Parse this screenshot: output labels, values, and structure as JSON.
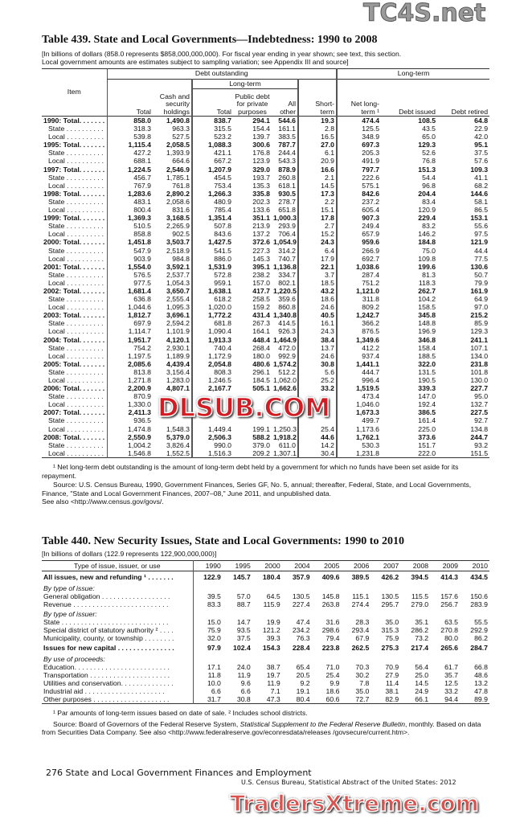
{
  "watermarks": {
    "top": "TC4S.net",
    "middle": "DLSUB.COM",
    "bottom": "TradersXtreme.com"
  },
  "t439": {
    "title": "Table 439. State and Local Governments—Indebtedness: 1990 to 2008",
    "subtitle1": "[In billions of dollars (858.0 represents $858,000,000,000). For fiscal year ending in year shown; see text, this section.",
    "subtitle2": "Local government amounts are estimates subject to sampling variation; see Appendix III and source]",
    "headers": {
      "item": "Item",
      "debt_outstanding": "Debt outstanding",
      "long_term_group": "Long-term",
      "long_term_sub": "Long-term",
      "total": "Total",
      "cash": "Cash and security holdings",
      "lt_total": "Total",
      "public": "Public debt for private purposes",
      "all_other": "All other",
      "short": "Short- term",
      "net": "Net long- term ¹",
      "issued": "Debt issued",
      "retired": "Debt retired"
    },
    "rows": [
      [
        "1990: Total. . . . . . .",
        1,
        "858.0",
        "1,490.8",
        "838.7",
        "294.1",
        "544.6",
        "19.3",
        "474.4",
        "108.5",
        "64.8"
      ],
      [
        "State . . . . . . . . . .",
        0,
        "318.3",
        "963.3",
        "315.5",
        "154.4",
        "161.1",
        "2.8",
        "125.5",
        "43.5",
        "22.9"
      ],
      [
        "Local . . . . . . . . . .",
        0,
        "539.8",
        "527.5",
        "523.2",
        "139.7",
        "383.5",
        "16.5",
        "348.9",
        "65.0",
        "42.0"
      ],
      [
        "1995: Total. . . . . . .",
        1,
        "1,115.4",
        "2,058.5",
        "1,088.3",
        "300.6",
        "787.7",
        "27.0",
        "697.3",
        "129.3",
        "95.1"
      ],
      [
        "State . . . . . . . . . .",
        0,
        "427.2",
        "1,393.9",
        "421.1",
        "176.8",
        "244.4",
        "6.1",
        "205.3",
        "52.6",
        "37.5"
      ],
      [
        "Local . . . . . . . . . .",
        0,
        "688.1",
        "664.6",
        "667.2",
        "123.9",
        "543.3",
        "20.9",
        "491.9",
        "76.8",
        "57.6"
      ],
      [
        "1997: Total. . . . . . .",
        1,
        "1,224.5",
        "2,546.9",
        "1,207.9",
        "329.0",
        "878.9",
        "16.6",
        "797.7",
        "151.3",
        "109.3"
      ],
      [
        "State . . . . . . . . . .",
        0,
        "456.7",
        "1,785.1",
        "454.5",
        "193.7",
        "260.8",
        "2.1",
        "222.6",
        "54.4",
        "41.1"
      ],
      [
        "Local . . . . . . . . . .",
        0,
        "767.9",
        "761.8",
        "753.4",
        "135.3",
        "618.1",
        "14.5",
        "575.1",
        "96.8",
        "68.2"
      ],
      [
        "1998: Total. . . . . . .",
        1,
        "1,283.6",
        "2,890.2",
        "1,266.3",
        "335.8",
        "930.5",
        "17.3",
        "842.6",
        "204.4",
        "144.6"
      ],
      [
        "State . . . . . . . . . .",
        0,
        "483.1",
        "2,058.6",
        "480.9",
        "202.3",
        "278.7",
        "2.2",
        "237.2",
        "83.4",
        "58.1"
      ],
      [
        "Local . . . . . . . . . .",
        0,
        "800.4",
        "831.6",
        "785.4",
        "133.6",
        "651.8",
        "15.1",
        "605.4",
        "120.9",
        "86.5"
      ],
      [
        "1999: Total. . . . . . .",
        1,
        "1,369.3",
        "3,168.5",
        "1,351.4",
        "351.1",
        "1,000.3",
        "17.8",
        "907.3",
        "229.4",
        "153.1"
      ],
      [
        "State . . . . . . . . . .",
        0,
        "510.5",
        "2,265.9",
        "507.8",
        "213.9",
        "293.9",
        "2.7",
        "249.4",
        "83.2",
        "55.6"
      ],
      [
        "Local . . . . . . . . . .",
        0,
        "858.8",
        "902.5",
        "843.6",
        "137.2",
        "706.4",
        "15.2",
        "657.9",
        "146.2",
        "97.5"
      ],
      [
        "2000: Total. . . . . . .",
        1,
        "1,451.8",
        "3,503.7",
        "1,427.5",
        "372.6",
        "1,054.9",
        "24.3",
        "959.6",
        "184.8",
        "121.9"
      ],
      [
        "State . . . . . . . . . .",
        0,
        "547.9",
        "2,518.9",
        "541.5",
        "227.3",
        "314.2",
        "6.4",
        "266.9",
        "75.0",
        "44.4"
      ],
      [
        "Local . . . . . . . . . .",
        0,
        "903.9",
        "984.8",
        "886.0",
        "145.3",
        "740.7",
        "17.9",
        "692.7",
        "109.8",
        "77.5"
      ],
      [
        "2001: Total. . . . . . .",
        1,
        "1,554.0",
        "3,592.1",
        "1,531.9",
        "395.1",
        "1,136.8",
        "22.1",
        "1,038.6",
        "199.6",
        "130.6"
      ],
      [
        "State . . . . . . . . . .",
        0,
        "576.5",
        "2,537.7",
        "572.8",
        "238.2",
        "334.7",
        "3.7",
        "287.4",
        "81.3",
        "50.7"
      ],
      [
        "Local . . . . . . . . . .",
        0,
        "977.5",
        "1,054.3",
        "959.1",
        "157.0",
        "802.1",
        "18.5",
        "751.2",
        "118.3",
        "79.9"
      ],
      [
        "2002: Total. . . . . . .",
        1,
        "1,681.4",
        "3,650.7",
        "1,638.1",
        "417.7",
        "1,220.5",
        "43.2",
        "1,121.0",
        "262.7",
        "161.9"
      ],
      [
        "State . . . . . . . . . .",
        0,
        "636.8",
        "2,555.4",
        "618.2",
        "258.5",
        "359.6",
        "18.6",
        "311.8",
        "104.2",
        "64.9"
      ],
      [
        "Local . . . . . . . . . .",
        0,
        "1,044.6",
        "1,095.3",
        "1,020.0",
        "159.2",
        "860.8",
        "24.6",
        "809.2",
        "158.5",
        "97.0"
      ],
      [
        "2003: Total. . . . . . .",
        1,
        "1,812.7",
        "3,696.1",
        "1,772.2",
        "431.4",
        "1,340.8",
        "40.5",
        "1,242.7",
        "345.8",
        "215.2"
      ],
      [
        "State . . . . . . . . . .",
        0,
        "697.9",
        "2,594.2",
        "681.8",
        "267.3",
        "414.5",
        "16.1",
        "366.2",
        "148.8",
        "85.9"
      ],
      [
        "Local . . . . . . . . . .",
        0,
        "1,114.7",
        "1,101.9",
        "1,090.4",
        "164.1",
        "926.3",
        "24.3",
        "876.5",
        "196.9",
        "129.3"
      ],
      [
        "2004: Total. . . . . . .",
        1,
        "1,951.7",
        "4,120.1",
        "1,913.3",
        "448.4",
        "1,464.9",
        "38.4",
        "1,349.6",
        "346.8",
        "241.1"
      ],
      [
        "State . . . . . . . . . .",
        0,
        "754.2",
        "2,930.1",
        "740.4",
        "268.4",
        "472.0",
        "13.7",
        "412.2",
        "158.4",
        "107.1"
      ],
      [
        "Local . . . . . . . . . .",
        0,
        "1,197.5",
        "1,189.9",
        "1,172.9",
        "180.0",
        "992.9",
        "24.6",
        "937.4",
        "188.5",
        "134.0"
      ],
      [
        "2005: Total. . . . . . .",
        1,
        "2,085.6",
        "4,439.4",
        "2,054.8",
        "480.6",
        "1,574.2",
        "30.8",
        "1,441.1",
        "322.0",
        "231.8"
      ],
      [
        "State . . . . . . . . . .",
        0,
        "813.8",
        "3,156.4",
        "808.3",
        "296.1",
        "512.2",
        "5.6",
        "444.7",
        "131.5",
        "101.8"
      ],
      [
        "Local . . . . . . . . . .",
        0,
        "1,271.8",
        "1,283.0",
        "1,246.5",
        "184.5",
        "1,062.0",
        "25.2",
        "996.4",
        "190.5",
        "130.0"
      ],
      [
        "2006: Total. . . . . . .",
        1,
        "2,200.9",
        "4,807.1",
        "2,167.7",
        "505.1",
        "1,662.6",
        "33.2",
        "1,519.5",
        "339.3",
        "227.7"
      ],
      [
        "State . . . . . . . . . .",
        0,
        "870.9",
        "",
        "",
        "",
        "",
        "",
        "473.4",
        "147.0",
        "95.0"
      ],
      [
        "Local . . . . . . . . . .",
        0,
        "1,330.0",
        "",
        "",
        "",
        "",
        "",
        "1,046.0",
        "192.4",
        "132.7"
      ],
      [
        "2007: Total. . . . . . .",
        1,
        "2,411.3",
        "",
        "",
        "",
        "",
        "",
        "1,673.3",
        "386.5",
        "227.5"
      ],
      [
        "State . . . . . . . . . .",
        0,
        "936.5",
        "",
        "",
        "",
        "",
        "",
        "499.7",
        "161.4",
        "92.7"
      ],
      [
        "Local . . . . . . . . . .",
        0,
        "1,474.8",
        "1,548.3",
        "1,449.4",
        "199.1",
        "1,250.3",
        "25.4",
        "1,173.6",
        "225.0",
        "134.8"
      ],
      [
        "2008: Total. . . . . . .",
        1,
        "2,550.9",
        "5,379.0",
        "2,506.3",
        "588.2",
        "1,918.2",
        "44.6",
        "1,762.1",
        "373.6",
        "244.7"
      ],
      [
        "State . . . . . . . . . .",
        0,
        "1,004.2",
        "3,826.4",
        "990.0",
        "379.0",
        "611.0",
        "14.2",
        "530.3",
        "151.7",
        "93.2"
      ],
      [
        "Local . . . . . . . . . .",
        0,
        "1,546.8",
        "1,552.5",
        "1,516.3",
        "209.2",
        "1,307.1",
        "30.4",
        "1,231.8",
        "222.0",
        "151.5"
      ]
    ],
    "footnote": "¹ Net long-term debt outstanding is the amount of long-term debt held by a government for which no funds have been set aside for its repayment.",
    "source": "Source: U.S. Census Bureau, 1990, Government Finances, Series GF, No. 5, annual; thereafter, Federal, State, and Local Governments, Finance, \"State and Local Government Finances, 2007–08,\" June 2011, and unpublished data.",
    "see_also": "See also <http://www.census.gov/govs/."
  },
  "t440": {
    "title": "Table 440. New Security Issues, State and Local Governments: 1990 to 2010",
    "subtitle": "[In billions of dollars (122.9 represents 122,900,000,000)]",
    "item_header": "Type of issue, issuer, or use",
    "years": [
      "1990",
      "1995",
      "2000",
      "2004",
      "2005",
      "2006",
      "2007",
      "2008",
      "2009",
      "2010"
    ],
    "rows": [
      {
        "t": "b",
        "label": "All issues, new and refunding ¹ . . . . . . .",
        "v": [
          "122.9",
          "145.7",
          "180.4",
          "357.9",
          "409.6",
          "389.5",
          "426.2",
          "394.5",
          "414.3",
          "434.5"
        ]
      },
      {
        "t": "i",
        "label": "By type of issue:",
        "v": []
      },
      {
        "t": "n",
        "label": "General obligation . . . . . . . . . . . . . . . . . .",
        "v": [
          "39.5",
          "57.0",
          "64.5",
          "130.5",
          "145.8",
          "115.1",
          "130.5",
          "115.5",
          "157.6",
          "150.6"
        ]
      },
      {
        "t": "n",
        "label": "Revenue . . . . . . . . . . . . . . . . . . . . . . . . .",
        "v": [
          "83.3",
          "88.7",
          "115.9",
          "227.4",
          "263.8",
          "274.4",
          "295.7",
          "279.0",
          "256.7",
          "283.9"
        ]
      },
      {
        "t": "i",
        "label": "By type of issuer:",
        "v": []
      },
      {
        "t": "n",
        "label": "State . . . . . . . . . . . . . . . . . . . . . . . . . . . .",
        "v": [
          "15.0",
          "14.7",
          "19.9",
          "47.4",
          "31.6",
          "28.3",
          "35.0",
          "35.1",
          "63.5",
          "55.5"
        ]
      },
      {
        "t": "n",
        "label": "Special district of statutory authority ² . . . .",
        "v": [
          "75.9",
          "93.5",
          "121.2",
          "234.2",
          "298.6",
          "293.4",
          "315.3",
          "286.2",
          "270.8",
          "292.9"
        ]
      },
      {
        "t": "n",
        "label": "Municipality, county, or township . . . . . . . .",
        "v": [
          "32.0",
          "37.5",
          "39.3",
          "76.3",
          "79.4",
          "67.9",
          "75.9",
          "73.2",
          "80.0",
          "86.2"
        ]
      },
      {
        "t": "b",
        "label": "Issues for new capital . . . . . . . . . . . . . . .",
        "v": [
          "97.9",
          "102.4",
          "154.3",
          "228.4",
          "223.8",
          "262.5",
          "275.3",
          "217.4",
          "265.6",
          "284.7"
        ]
      },
      {
        "t": "i",
        "label": "By use of proceeds:",
        "v": []
      },
      {
        "t": "n",
        "label": "Education. . . . . . . . . . . . . . . . . . . . . . . . .",
        "v": [
          "17.1",
          "24.0",
          "38.7",
          "65.4",
          "71.0",
          "70.3",
          "70.9",
          "56.4",
          "61.7",
          "66.8"
        ]
      },
      {
        "t": "n",
        "label": "Transportation . . . . . . . . . . . . . . . . . . . . .",
        "v": [
          "11.8",
          "11.9",
          "19.7",
          "20.5",
          "25.4",
          "30.2",
          "27.9",
          "25.0",
          "35.7",
          "48.6"
        ]
      },
      {
        "t": "n",
        "label": "Utilities and conservation. . . . . . . . . . . . . .",
        "v": [
          "10.0",
          "9.6",
          "11.9",
          "9.2",
          "9.9",
          "7.8",
          "11.4",
          "14.5",
          "12.5",
          "13.2"
        ]
      },
      {
        "t": "n",
        "label": "Industrial aid . . . . . . . . . . . . . . . . . . . . .",
        "v": [
          "6.6",
          "6.6",
          "7.1",
          "19.1",
          "18.6",
          "35.0",
          "38.1",
          "24.9",
          "33.2",
          "47.8"
        ]
      },
      {
        "t": "n",
        "label": "Other purposes . . . . . . . . . . . . . . . . . . . .",
        "v": [
          "31.7",
          "30.8",
          "47.3",
          "80.4",
          "60.6",
          "72.7",
          "82.9",
          "66.1",
          "94.4",
          "89.9"
        ]
      }
    ],
    "footnote": "¹ Par amounts of long-term issues based on date of sale. ² Includes school districts.",
    "source_pre": "Source: Board of Governors of the Federal Reserve System, ",
    "source_italic": "Statistical Supplement to the Federal Reserve Bulletin",
    "source_post": ", monthly. Based on data from Securities Data Company. See also <http://www.federalreserve.gov/econresdata/releases /govsecure/current.htm>."
  },
  "footer": {
    "page": "276  State and Local Government Finances and Employment",
    "credit": "U.S. Census Bureau, Statistical Abstract of the United States: 2012"
  }
}
